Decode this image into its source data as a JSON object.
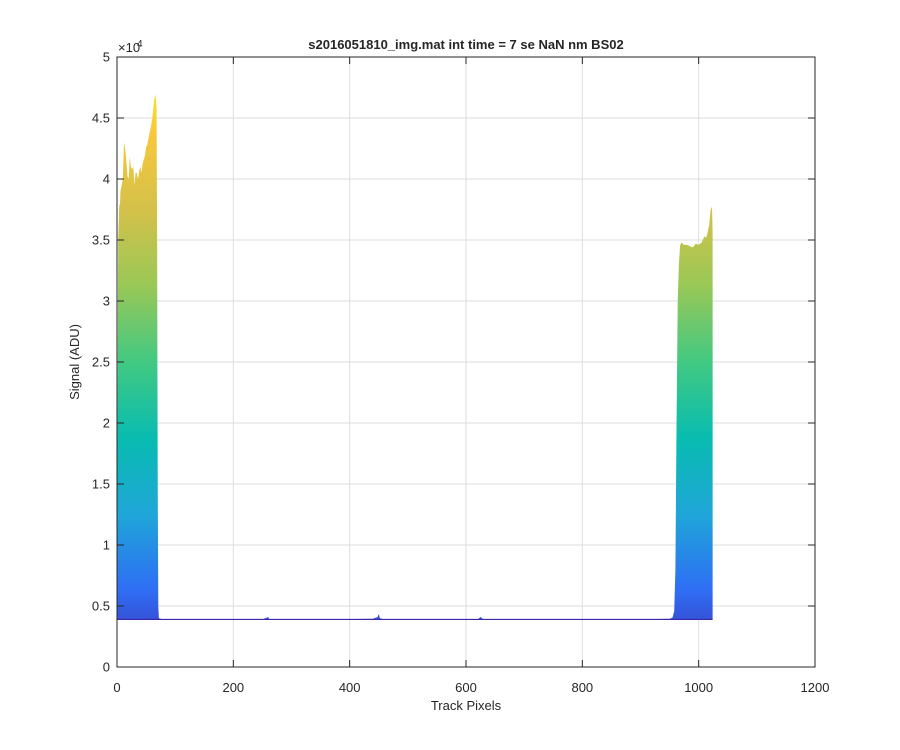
{
  "chart_data": {
    "type": "area",
    "title": "s2016051810_img.mat int time = 7 se  NaN nm BS02",
    "xlabel": "Track Pixels",
    "ylabel": "Signal (ADU)",
    "xlim": [
      0,
      1200
    ],
    "ylim": [
      0,
      50000
    ],
    "x_ticks": [
      0,
      200,
      400,
      600,
      800,
      1000,
      1200
    ],
    "x_tick_labels": [
      "0",
      "200",
      "400",
      "600",
      "800",
      "1000",
      "1200"
    ],
    "y_ticks": [
      0,
      5000,
      10000,
      15000,
      20000,
      25000,
      30000,
      35000,
      40000,
      45000,
      50000
    ],
    "y_tick_labels": [
      "0",
      "0.5",
      "1",
      "1.5",
      "2",
      "2.5",
      "3",
      "3.5",
      "4",
      "4.5",
      "5"
    ],
    "y_exponent_label": "×10",
    "y_exponent_power": "4",
    "grid": true,
    "colormap": [
      "#3e26a8",
      "#2f6ef5",
      "#1fa6d8",
      "#08bcb0",
      "#42c982",
      "#99c857",
      "#d4c149",
      "#f8c73b",
      "#f9fb0e"
    ],
    "series": [
      {
        "baseline": 3900,
        "x": [
          0,
          1,
          2,
          3,
          4,
          5,
          6,
          8,
          10,
          12,
          14,
          16,
          18,
          20,
          22,
          24,
          26,
          28,
          30,
          32,
          34,
          36,
          38,
          40,
          42,
          44,
          46,
          48,
          50,
          52,
          54,
          56,
          58,
          60,
          62,
          64,
          65,
          66,
          67,
          68,
          69,
          70,
          71,
          72,
          75,
          80,
          100,
          150,
          200,
          250,
          260,
          262,
          264,
          300,
          350,
          440,
          448,
          450,
          452,
          460,
          500,
          550,
          600,
          620,
          625,
          630,
          700,
          800,
          900,
          950,
          955,
          958,
          960,
          962,
          964,
          966,
          968,
          970,
          975,
          980,
          985,
          990,
          995,
          1000,
          1005,
          1010,
          1012,
          1014,
          1016,
          1018,
          1020,
          1021,
          1022,
          1023,
          1024
        ],
        "y": [
          4000,
          21000,
          35000,
          36500,
          38000,
          37800,
          39000,
          39500,
          40000,
          43000,
          42500,
          41500,
          40200,
          40000,
          41800,
          41000,
          40800,
          41000,
          39500,
          40500,
          40500,
          40000,
          40600,
          41000,
          40500,
          41200,
          41600,
          41900,
          42600,
          42800,
          43300,
          43800,
          44200,
          44800,
          45500,
          46700,
          46500,
          47000,
          46500,
          45800,
          35000,
          15000,
          5000,
          4000,
          3950,
          3900,
          3900,
          3900,
          3900,
          3900,
          4100,
          3900,
          3900,
          3900,
          3900,
          3950,
          4100,
          4350,
          4000,
          3900,
          3900,
          3900,
          3900,
          3900,
          4100,
          3900,
          3900,
          3900,
          3900,
          3950,
          4050,
          4600,
          8000,
          20000,
          30000,
          33000,
          34500,
          34800,
          34600,
          34600,
          34500,
          34400,
          34700,
          34600,
          34800,
          35300,
          35200,
          35300,
          35800,
          36200,
          37200,
          37600,
          37700,
          37500,
          35500
        ]
      }
    ]
  }
}
